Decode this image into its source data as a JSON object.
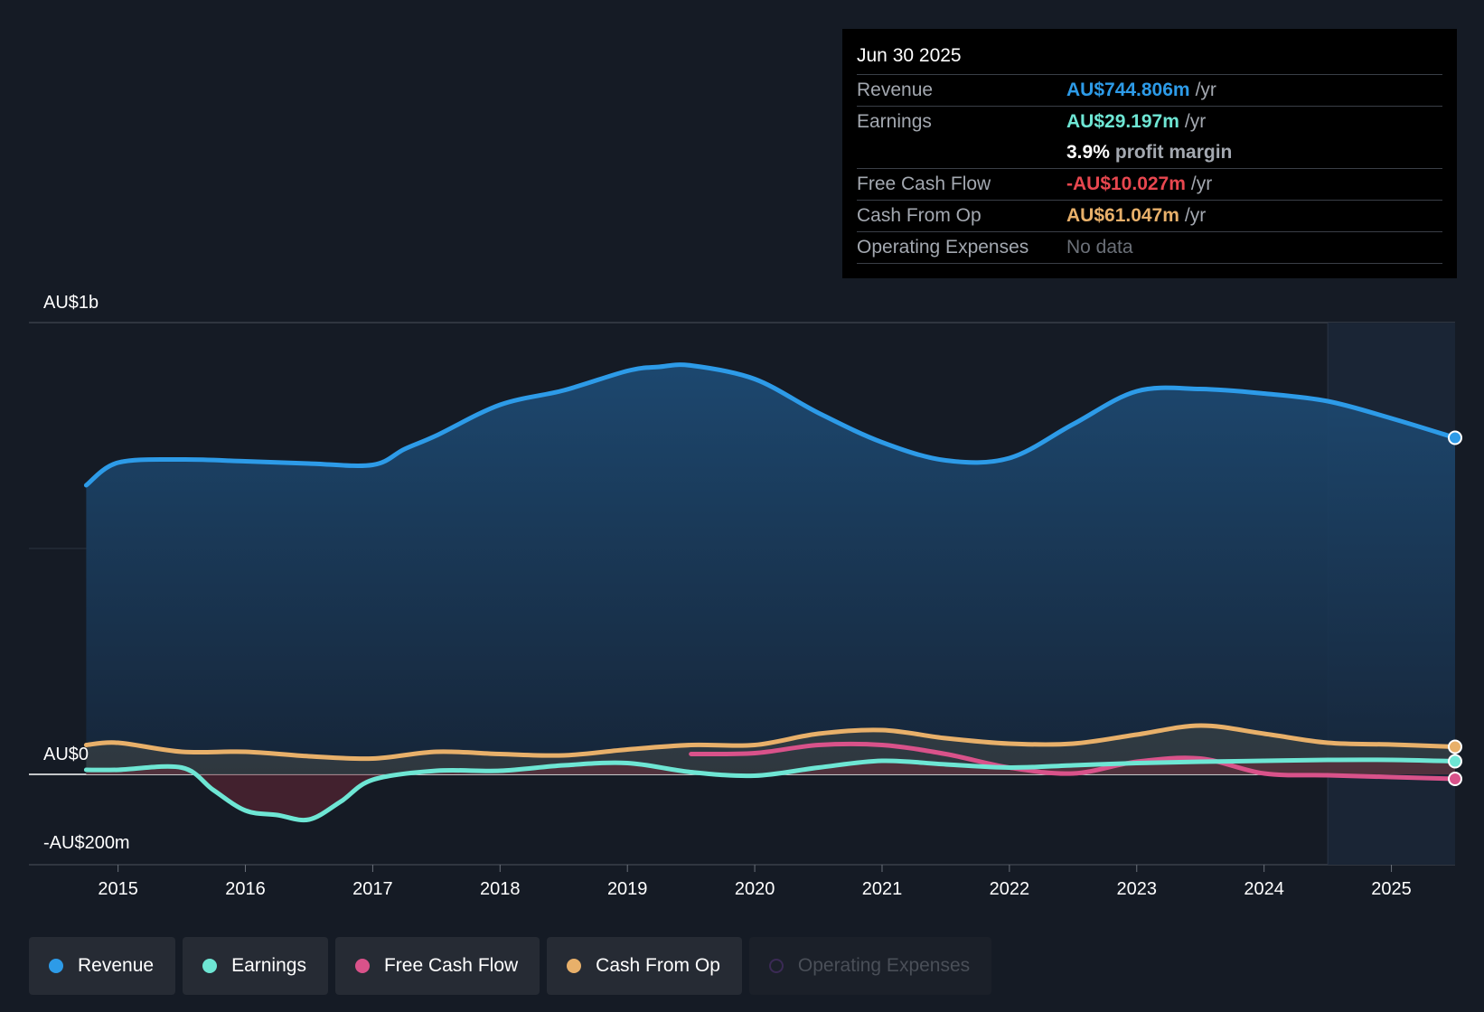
{
  "tooltip": {
    "date": "Jun 30 2025",
    "rows": [
      {
        "label": "Revenue",
        "value": "AU$744.806m",
        "unit": "/yr",
        "color": "#2d9be8"
      },
      {
        "label": "Earnings",
        "value": "AU$29.197m",
        "unit": "/yr",
        "color": "#6ee6d4"
      },
      {
        "label": "",
        "value": "3.9%",
        "unit": "profit margin",
        "color": "#ffffff"
      },
      {
        "label": "Free Cash Flow",
        "value": "-AU$10.027m",
        "unit": "/yr",
        "color": "#e8474f"
      },
      {
        "label": "Cash From Op",
        "value": "AU$61.047m",
        "unit": "/yr",
        "color": "#e8b06a"
      },
      {
        "label": "Operating Expenses",
        "value": "No data",
        "unit": "",
        "color": "#6b7078"
      }
    ]
  },
  "legend": [
    {
      "label": "Revenue",
      "color": "#2d9be8",
      "active": true
    },
    {
      "label": "Earnings",
      "color": "#6ee6d4",
      "active": true
    },
    {
      "label": "Free Cash Flow",
      "color": "#d9528a",
      "active": true
    },
    {
      "label": "Cash From Op",
      "color": "#e8b06a",
      "active": true
    },
    {
      "label": "Operating Expenses",
      "color": "#3b2a55",
      "active": false
    }
  ],
  "chart_data": {
    "type": "area",
    "ylim": [
      -200,
      1000
    ],
    "y_tick_labels": [
      "AU$1b",
      "AU$0",
      "-AU$200m"
    ],
    "y_tick_values": [
      1000,
      0,
      -200
    ],
    "x_tick_labels": [
      "2015",
      "2016",
      "2017",
      "2018",
      "2019",
      "2020",
      "2021",
      "2022",
      "2023",
      "2024",
      "2025"
    ],
    "x_tick_values": [
      2015,
      2016,
      2017,
      2018,
      2019,
      2020,
      2021,
      2022,
      2023,
      2024,
      2025
    ],
    "xlim": [
      2014.3,
      2025.5
    ],
    "forecast_start": 2024.5,
    "series": [
      {
        "name": "Revenue",
        "color": "#2d9be8",
        "x": [
          2014.75,
          2015.0,
          2015.5,
          2016.0,
          2016.5,
          2017.0,
          2017.25,
          2017.5,
          2018.0,
          2018.5,
          2019.0,
          2019.25,
          2019.5,
          2020.0,
          2020.5,
          2021.0,
          2021.5,
          2022.0,
          2022.5,
          2023.0,
          2023.5,
          2024.0,
          2024.5,
          2025.0,
          2025.5
        ],
        "values": [
          640,
          690,
          697,
          693,
          688,
          685,
          720,
          750,
          818,
          850,
          893,
          902,
          905,
          875,
          800,
          735,
          695,
          700,
          775,
          848,
          853,
          843,
          826,
          788,
          745
        ]
      },
      {
        "name": "Earnings",
        "color": "#6ee6d4",
        "x": [
          2014.75,
          2015.0,
          2015.5,
          2015.75,
          2016.0,
          2016.25,
          2016.5,
          2016.75,
          2017.0,
          2017.5,
          2018.0,
          2018.5,
          2019.0,
          2019.5,
          2020.0,
          2020.5,
          2021.0,
          2021.5,
          2022.0,
          2022.5,
          2023.0,
          2023.5,
          2024.0,
          2024.5,
          2025.0,
          2025.5
        ],
        "values": [
          10,
          10,
          15,
          -35,
          -80,
          -90,
          -100,
          -60,
          -12,
          8,
          8,
          20,
          25,
          5,
          -3,
          15,
          30,
          22,
          15,
          20,
          25,
          28,
          30,
          32,
          32,
          29
        ]
      },
      {
        "name": "Free Cash Flow",
        "color": "#d9528a",
        "x": [
          2019.5,
          2020.0,
          2020.5,
          2021.0,
          2021.5,
          2022.0,
          2022.5,
          2023.0,
          2023.5,
          2024.0,
          2024.5,
          2025.0,
          2025.5
        ],
        "values": [
          45,
          47,
          65,
          65,
          45,
          15,
          2,
          28,
          35,
          2,
          -2,
          -6,
          -10
        ]
      },
      {
        "name": "Cash From Op",
        "color": "#e8b06a",
        "x": [
          2014.75,
          2015.0,
          2015.5,
          2016.0,
          2016.5,
          2017.0,
          2017.5,
          2018.0,
          2018.5,
          2019.0,
          2019.5,
          2020.0,
          2020.5,
          2021.0,
          2021.5,
          2022.0,
          2022.5,
          2023.0,
          2023.5,
          2024.0,
          2024.5,
          2025.0,
          2025.5
        ],
        "values": [
          65,
          70,
          50,
          50,
          40,
          35,
          50,
          45,
          42,
          55,
          65,
          65,
          90,
          98,
          80,
          68,
          68,
          88,
          108,
          90,
          70,
          66,
          61
        ]
      }
    ]
  }
}
